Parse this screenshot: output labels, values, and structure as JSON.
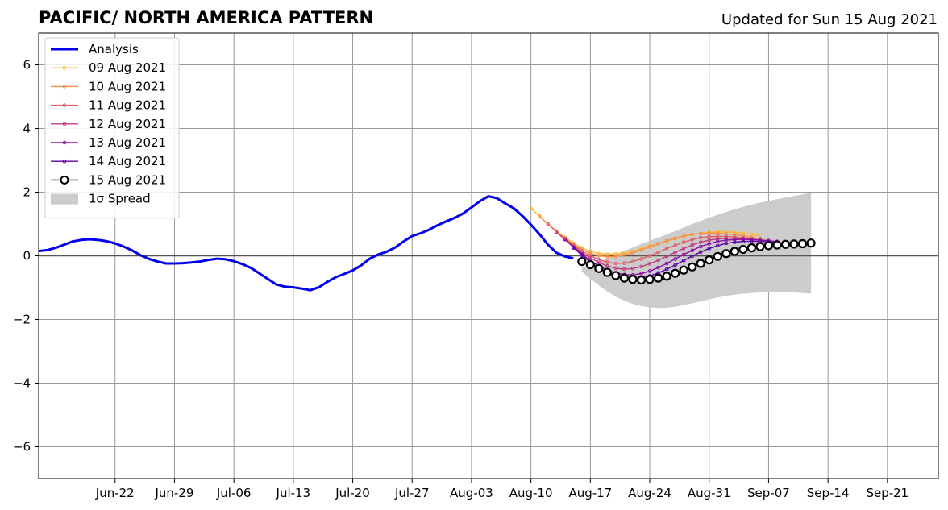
{
  "chart_data": {
    "type": "line",
    "title": "PACIFIC/ NORTH AMERICA PATTERN",
    "subtitle": "Updated for Sun 15 Aug 2021",
    "xlabel": "",
    "ylabel": "",
    "xlim": [
      "2021-06-13",
      "2021-09-27"
    ],
    "ylim": [
      -7,
      7
    ],
    "y_ticks": [
      -6,
      -4,
      -2,
      0,
      2,
      4,
      6
    ],
    "y_tick_labels": [
      "−6",
      "−4",
      "−2",
      "0",
      "2",
      "4",
      "6"
    ],
    "x_ticks": [
      "2021-06-22",
      "2021-06-29",
      "2021-07-06",
      "2021-07-13",
      "2021-07-20",
      "2021-07-27",
      "2021-08-03",
      "2021-08-10",
      "2021-08-17",
      "2021-08-24",
      "2021-08-31",
      "2021-09-07",
      "2021-09-14",
      "2021-09-21"
    ],
    "x_tick_labels": [
      "Jun-22",
      "Jun-29",
      "Jul-06",
      "Jul-13",
      "Jul-20",
      "Jul-27",
      "Aug-03",
      "Aug-10",
      "Aug-17",
      "Aug-24",
      "Aug-31",
      "Sep-07",
      "Sep-14",
      "Sep-21"
    ],
    "grid": true,
    "legend_position": "top-left",
    "colors": {
      "analysis": "#0000ee",
      "spread": "#cccccc",
      "zero_line": "#555555",
      "grid": "#999999"
    },
    "analysis": {
      "name": "Analysis",
      "x": [
        "2021-06-13",
        "2021-06-14",
        "2021-06-15",
        "2021-06-16",
        "2021-06-17",
        "2021-06-18",
        "2021-06-19",
        "2021-06-20",
        "2021-06-21",
        "2021-06-22",
        "2021-06-23",
        "2021-06-24",
        "2021-06-25",
        "2021-06-26",
        "2021-06-27",
        "2021-06-28",
        "2021-06-29",
        "2021-06-30",
        "2021-07-01",
        "2021-07-02",
        "2021-07-03",
        "2021-07-04",
        "2021-07-05",
        "2021-07-06",
        "2021-07-07",
        "2021-07-08",
        "2021-07-09",
        "2021-07-10",
        "2021-07-11",
        "2021-07-12",
        "2021-07-13",
        "2021-07-14",
        "2021-07-15",
        "2021-07-16",
        "2021-07-17",
        "2021-07-18",
        "2021-07-19",
        "2021-07-20",
        "2021-07-21",
        "2021-07-22",
        "2021-07-23",
        "2021-07-24",
        "2021-07-25",
        "2021-07-26",
        "2021-07-27",
        "2021-07-28",
        "2021-07-29",
        "2021-07-30",
        "2021-07-31",
        "2021-08-01",
        "2021-08-02",
        "2021-08-03",
        "2021-08-04",
        "2021-08-05",
        "2021-08-06",
        "2021-08-07",
        "2021-08-08",
        "2021-08-09",
        "2021-08-10",
        "2021-08-11",
        "2021-08-12",
        "2021-08-13",
        "2021-08-14",
        "2021-08-15"
      ],
      "y": [
        0.15,
        0.18,
        0.25,
        0.35,
        0.45,
        0.5,
        0.52,
        0.5,
        0.46,
        0.39,
        0.29,
        0.17,
        0.02,
        -0.1,
        -0.18,
        -0.24,
        -0.24,
        -0.23,
        -0.21,
        -0.18,
        -0.13,
        -0.09,
        -0.11,
        -0.17,
        -0.26,
        -0.38,
        -0.55,
        -0.73,
        -0.9,
        -0.97,
        -0.99,
        -1.03,
        -1.08,
        -0.99,
        -0.82,
        -0.67,
        -0.57,
        -0.46,
        -0.3,
        -0.09,
        0.04,
        0.13,
        0.26,
        0.45,
        0.62,
        0.71,
        0.82,
        0.96,
        1.08,
        1.19,
        1.33,
        1.52,
        1.72,
        1.87,
        1.81,
        1.64,
        1.49,
        1.25,
        0.98,
        0.68,
        0.35,
        0.1,
        -0.02,
        -0.08
      ]
    },
    "forecasts": [
      {
        "name": "09 Aug 2021",
        "color": "#ffb833",
        "start": "2021-08-10",
        "y": [
          1.49,
          1.25,
          1.0,
          0.78,
          0.58,
          0.4,
          0.25,
          0.14,
          0.07,
          0.05,
          0.06,
          0.09,
          0.14,
          0.22,
          0.3,
          0.38,
          0.46,
          0.54,
          0.61,
          0.67,
          0.71,
          0.74,
          0.75,
          0.75,
          0.74,
          0.71,
          0.67,
          0.64
        ]
      },
      {
        "name": "10 Aug 2021",
        "color": "#f98e48",
        "start": "2021-08-11",
        "y": [
          1.24,
          1.0,
          0.76,
          0.55,
          0.36,
          0.2,
          0.08,
          0.0,
          -0.03,
          -0.02,
          0.02,
          0.09,
          0.18,
          0.28,
          0.38,
          0.47,
          0.55,
          0.62,
          0.67,
          0.7,
          0.71,
          0.71,
          0.69,
          0.66,
          0.62,
          0.58,
          0.55
        ]
      },
      {
        "name": "11 Aug 2021",
        "color": "#e05e66",
        "start": "2021-08-12",
        "y": [
          1.0,
          0.76,
          0.53,
          0.33,
          0.15,
          0.0,
          -0.12,
          -0.2,
          -0.24,
          -0.23,
          -0.18,
          -0.1,
          0.0,
          0.11,
          0.23,
          0.33,
          0.43,
          0.51,
          0.57,
          0.6,
          0.61,
          0.61,
          0.59,
          0.56,
          0.53,
          0.5
        ]
      },
      {
        "name": "12 Aug 2021",
        "color": "#c03a83",
        "start": "2021-08-13",
        "y": [
          0.75,
          0.51,
          0.29,
          0.1,
          -0.07,
          -0.21,
          -0.32,
          -0.39,
          -0.42,
          -0.4,
          -0.34,
          -0.25,
          -0.14,
          -0.02,
          0.11,
          0.23,
          0.34,
          0.43,
          0.49,
          0.53,
          0.55,
          0.55,
          0.54,
          0.52,
          0.5,
          0.48
        ]
      },
      {
        "name": "13 Aug 2021",
        "color": "#8f0da4",
        "start": "2021-08-14",
        "y": [
          0.52,
          0.27,
          0.05,
          -0.15,
          -0.32,
          -0.45,
          -0.54,
          -0.59,
          -0.6,
          -0.56,
          -0.48,
          -0.37,
          -0.24,
          -0.1,
          0.04,
          0.17,
          0.29,
          0.38,
          0.45,
          0.49,
          0.51,
          0.52,
          0.51,
          0.49,
          0.47,
          0.45
        ]
      },
      {
        "name": "14 Aug 2021",
        "color": "#5c01a6",
        "start": "2021-08-15",
        "y": [
          0.25,
          0.02,
          -0.2,
          -0.38,
          -0.53,
          -0.63,
          -0.69,
          -0.71,
          -0.69,
          -0.63,
          -0.54,
          -0.42,
          -0.29,
          -0.15,
          -0.01,
          0.12,
          0.23,
          0.32,
          0.39,
          0.43,
          0.45,
          0.46,
          0.45,
          0.44,
          0.42
        ]
      }
    ],
    "latest": {
      "name": "15 Aug 2021",
      "color": "#000000",
      "start": "2021-08-16",
      "y": [
        -0.18,
        -0.28,
        -0.4,
        -0.52,
        -0.62,
        -0.7,
        -0.74,
        -0.76,
        -0.74,
        -0.7,
        -0.64,
        -0.55,
        -0.45,
        -0.35,
        -0.24,
        -0.13,
        -0.02,
        0.07,
        0.14,
        0.2,
        0.25,
        0.29,
        0.32,
        0.34,
        0.36,
        0.37,
        0.38,
        0.4
      ]
    },
    "spread": {
      "name": "1σ Spread",
      "start": "2021-08-16",
      "upper": [
        -0.35,
        -0.3,
        -0.2,
        -0.08,
        0.05,
        0.16,
        0.26,
        0.37,
        0.47,
        0.57,
        0.67,
        0.78,
        0.89,
        1.0,
        1.1,
        1.2,
        1.29,
        1.38,
        1.46,
        1.54,
        1.61,
        1.67,
        1.73,
        1.78,
        1.83,
        1.88,
        1.93,
        1.98
      ],
      "lower": [
        -0.5,
        -0.72,
        -0.93,
        -1.12,
        -1.28,
        -1.41,
        -1.51,
        -1.58,
        -1.62,
        -1.64,
        -1.63,
        -1.6,
        -1.55,
        -1.49,
        -1.43,
        -1.37,
        -1.31,
        -1.26,
        -1.22,
        -1.19,
        -1.17,
        -1.15,
        -1.14,
        -1.14,
        -1.14,
        -1.15,
        -1.17,
        -1.19
      ]
    }
  }
}
